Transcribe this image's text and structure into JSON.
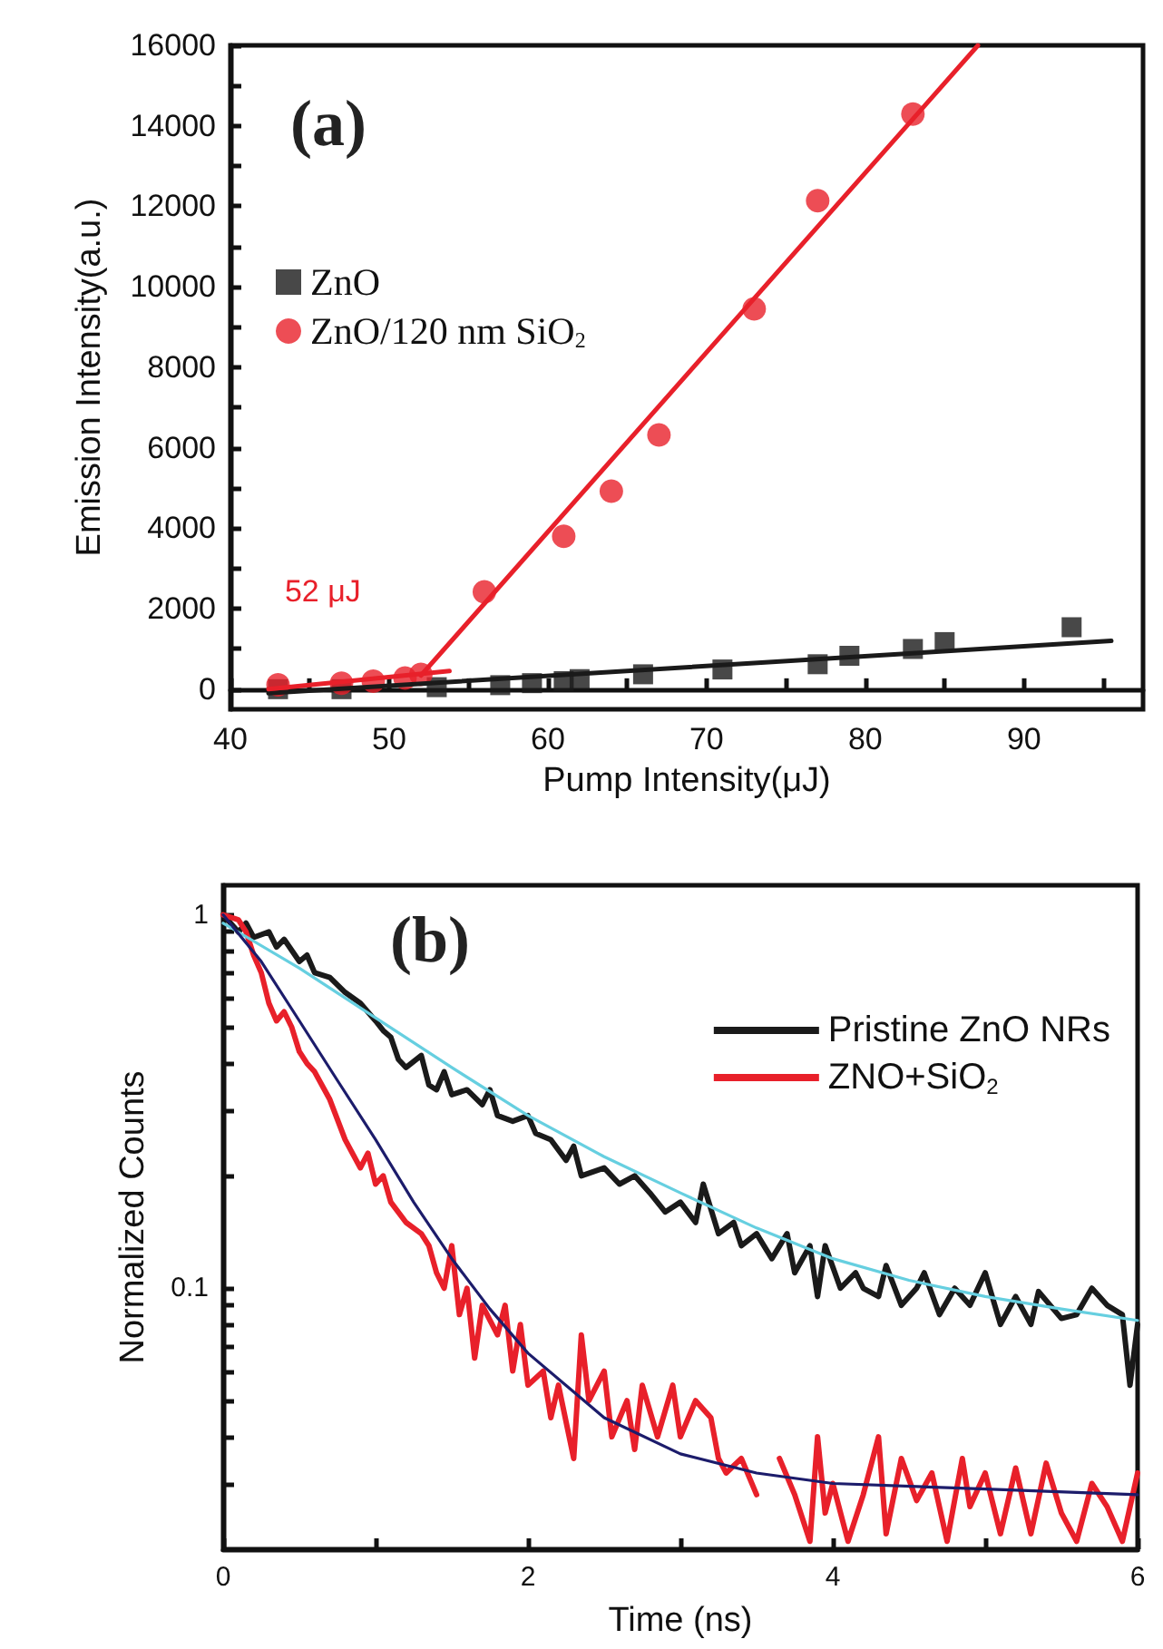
{
  "chart_data": [
    {
      "type": "scatter",
      "xlabel": "Pump Intensity(μJ)",
      "ylabel": "Emission Intensity(a.u.)",
      "xlim": [
        40,
        97.5
      ],
      "xticks": [
        40,
        {
          "value": 45,
          "label": null
        },
        50,
        {
          "value": 55,
          "label": null
        },
        60,
        {
          "value": 65,
          "label": null
        },
        70,
        {
          "value": 75,
          "label": null
        },
        80,
        {
          "value": 85,
          "label": null
        },
        90,
        {
          "value": 95,
          "label": null
        }
      ],
      "ylim": [
        -500,
        16000
      ],
      "yticks": [
        0,
        {
          "value": 1000,
          "label": null
        },
        2000,
        {
          "value": 3000,
          "label": null
        },
        4000,
        {
          "value": 5000,
          "label": null
        },
        6000,
        {
          "value": 7000,
          "label": null
        },
        8000,
        {
          "value": 9000,
          "label": null
        },
        10000,
        {
          "value": 11000,
          "label": null
        },
        12000,
        {
          "value": 13000,
          "label": null
        },
        14000,
        {
          "value": 15000,
          "label": null
        },
        16000
      ],
      "legend": "top left",
      "annotations": [
        "(a)",
        {
          "text": "52 μJ",
          "x": 52,
          "y": 340
        }
      ],
      "series": [
        {
          "name": "ZnO",
          "color": "#1a1a1a",
          "marker": "square",
          "x": [
            43,
            47,
            53,
            57,
            59,
            61,
            62,
            66,
            71,
            77,
            79,
            83,
            85,
            93
          ],
          "values": [
            0,
            0,
            50,
            100,
            150,
            200,
            250,
            370,
            490,
            620,
            830,
            1000,
            1170,
            1540
          ]
        },
        {
          "name": "ZnO/120 nm SiO$_{2}$",
          "color": "#e8202a",
          "marker": "circle",
          "x": [
            43,
            47,
            49,
            51,
            52,
            56,
            61,
            64,
            67,
            73,
            77,
            83
          ],
          "values": [
            110,
            150,
            200,
            280,
            370,
            2420,
            3800,
            4920,
            6320,
            9450,
            12140,
            14290
          ]
        },
        {
          "type": "line",
          "color": "#1a1a1a",
          "marker": "none",
          "x": [
            42.4,
            95.5
          ],
          "values": [
            -100,
            1200
          ]
        },
        {
          "type": "line",
          "color": "#e8202a",
          "marker": "none",
          "x": [
            42.4,
            53.8
          ],
          "values": [
            0,
            450
          ]
        },
        {
          "type": "line",
          "color": "#e8202a",
          "marker": "none",
          "x": [
            52,
            87.1
          ],
          "values": [
            340,
            16000
          ]
        }
      ]
    },
    {
      "type": "line",
      "xlabel": "Time (ns)",
      "ylabel": "Normalized Counts",
      "log": "y",
      "xlim": [
        0,
        6
      ],
      "xticks": [
        0,
        {
          "value": 1,
          "label": null
        },
        2,
        {
          "value": 3,
          "label": null
        },
        4,
        {
          "value": 5,
          "label": null
        },
        6
      ],
      "ylim": [
        0.02,
        1.2
      ],
      "yticks": [
        {
          "value": 0.03,
          "label": null
        },
        {
          "value": 0.04,
          "label": null
        },
        {
          "value": 0.05,
          "label": null
        },
        {
          "value": 0.06,
          "label": null
        },
        {
          "value": 0.07,
          "label": null
        },
        {
          "value": 0.08,
          "label": null
        },
        {
          "value": 0.09,
          "label": null
        },
        {
          "value": 0.1,
          "label": "0.1"
        },
        {
          "value": 0.2,
          "label": null
        },
        {
          "value": 0.3,
          "label": null
        },
        {
          "value": 0.4,
          "label": null
        },
        {
          "value": 0.5,
          "label": null
        },
        {
          "value": 0.6,
          "label": null
        },
        {
          "value": 0.7,
          "label": null
        },
        {
          "value": 0.8,
          "label": null
        },
        {
          "value": 0.9,
          "label": null
        },
        1
      ],
      "legend": "top right",
      "annotations": [
        "(b)"
      ],
      "series": [
        {
          "name": "Pristine ZnO NRs",
          "color": "#1a1a1a",
          "x": [
            0,
            0.1,
            0.15,
            0.2,
            0.3,
            0.35,
            0.4,
            0.5,
            0.55,
            0.6,
            0.7,
            0.8,
            0.9,
            1.0,
            1.05,
            1.1,
            1.15,
            1.2,
            1.3,
            1.35,
            1.4,
            1.45,
            1.5,
            1.6,
            1.7,
            1.75,
            1.8,
            1.9,
            2.0,
            2.05,
            2.15,
            2.25,
            2.3,
            2.35,
            2.5,
            2.6,
            2.7,
            2.8,
            2.9,
            3.0,
            3.1,
            3.15,
            3.25,
            3.35,
            3.4,
            3.5,
            3.6,
            3.7,
            3.75,
            3.85,
            3.9,
            3.95,
            4.05,
            4.15,
            4.2,
            4.3,
            4.35,
            4.45,
            4.55,
            4.6,
            4.7,
            4.8,
            4.9,
            5.0,
            5.1,
            5.2,
            5.3,
            5.35,
            5.5,
            5.6,
            5.7,
            5.8,
            5.9,
            5.95,
            6.0
          ],
          "values": [
            1.0,
            0.9,
            0.95,
            0.87,
            0.9,
            0.82,
            0.86,
            0.75,
            0.78,
            0.7,
            0.68,
            0.62,
            0.58,
            0.52,
            0.49,
            0.47,
            0.41,
            0.39,
            0.42,
            0.35,
            0.34,
            0.38,
            0.33,
            0.34,
            0.31,
            0.34,
            0.29,
            0.28,
            0.29,
            0.26,
            0.25,
            0.22,
            0.24,
            0.2,
            0.21,
            0.19,
            0.2,
            0.18,
            0.16,
            0.17,
            0.15,
            0.19,
            0.14,
            0.15,
            0.13,
            0.14,
            0.12,
            0.14,
            0.11,
            0.13,
            0.095,
            0.13,
            0.1,
            0.11,
            0.1,
            0.095,
            0.115,
            0.09,
            0.1,
            0.11,
            0.085,
            0.1,
            0.09,
            0.11,
            0.08,
            0.095,
            0.08,
            0.098,
            0.083,
            0.085,
            0.1,
            0.09,
            0.085,
            0.055,
            0.08
          ]
        },
        {
          "name": "ZNO+SiO$_{2}$",
          "color": "#e8202a",
          "x": [
            0,
            0.1,
            0.15,
            0.2,
            0.25,
            0.3,
            0.35,
            0.4,
            0.45,
            0.5,
            0.55,
            0.6,
            0.7,
            0.8,
            0.9,
            0.95,
            1.0,
            1.05,
            1.1,
            1.2,
            1.3,
            1.35,
            1.4,
            1.45,
            1.5,
            1.55,
            1.6,
            1.65,
            1.7,
            1.8,
            1.85,
            1.9,
            1.95,
            2.0,
            2.1,
            2.15,
            2.2,
            2.3,
            2.35,
            2.4,
            2.5,
            2.55,
            2.65,
            2.7,
            2.75,
            2.85,
            2.95,
            3.0,
            3.1,
            3.2,
            3.25,
            3.3,
            3.4,
            3.5,
            3.55,
            3.65,
            3.75,
            3.85,
            3.9,
            3.95,
            4.0,
            4.1,
            4.2,
            4.3,
            4.35,
            4.45,
            4.55,
            4.65,
            4.75,
            4.85,
            4.9,
            5.0,
            5.1,
            5.2,
            5.3,
            5.4,
            5.5,
            5.6,
            5.7,
            5.8,
            5.9,
            6.0
          ],
          "values": [
            1.0,
            0.97,
            0.9,
            0.78,
            0.7,
            0.58,
            0.52,
            0.55,
            0.5,
            0.43,
            0.4,
            0.38,
            0.32,
            0.25,
            0.21,
            0.23,
            0.19,
            0.2,
            0.17,
            0.15,
            0.14,
            0.13,
            0.11,
            0.1,
            0.13,
            0.085,
            0.1,
            0.065,
            0.09,
            0.075,
            0.09,
            0.06,
            0.08,
            0.055,
            0.06,
            0.045,
            0.055,
            0.035,
            0.075,
            0.05,
            0.06,
            0.04,
            0.05,
            0.037,
            0.055,
            0.04,
            0.055,
            0.04,
            0.05,
            0.045,
            0.035,
            0.032,
            0.035,
            0.028,
            null,
            0.035,
            0.028,
            0.021,
            0.04,
            0.025,
            0.03,
            0.021,
            0.028,
            0.04,
            0.022,
            0.035,
            0.027,
            0.032,
            0.021,
            0.035,
            0.026,
            0.032,
            0.022,
            0.033,
            0.022,
            0.034,
            0.025,
            0.021,
            0.03,
            0.026,
            0.021,
            0.032
          ]
        },
        {
          "color": "#66cfe0",
          "x": [
            0,
            0.5,
            1,
            1.5,
            2,
            2.5,
            3,
            3.5,
            4,
            4.5,
            5,
            5.5,
            6
          ],
          "values": [
            0.95,
            0.72,
            0.53,
            0.39,
            0.29,
            0.225,
            0.18,
            0.145,
            0.12,
            0.105,
            0.095,
            0.088,
            0.082
          ]
        },
        {
          "color": "#1c1c6b",
          "x": [
            0,
            0.25,
            0.5,
            0.75,
            1,
            1.25,
            1.5,
            1.75,
            2,
            2.5,
            3,
            3.5,
            4,
            5,
            6
          ],
          "values": [
            1.0,
            0.75,
            0.52,
            0.36,
            0.25,
            0.17,
            0.12,
            0.088,
            0.067,
            0.045,
            0.036,
            0.032,
            0.03,
            0.029,
            0.028
          ]
        }
      ]
    }
  ]
}
